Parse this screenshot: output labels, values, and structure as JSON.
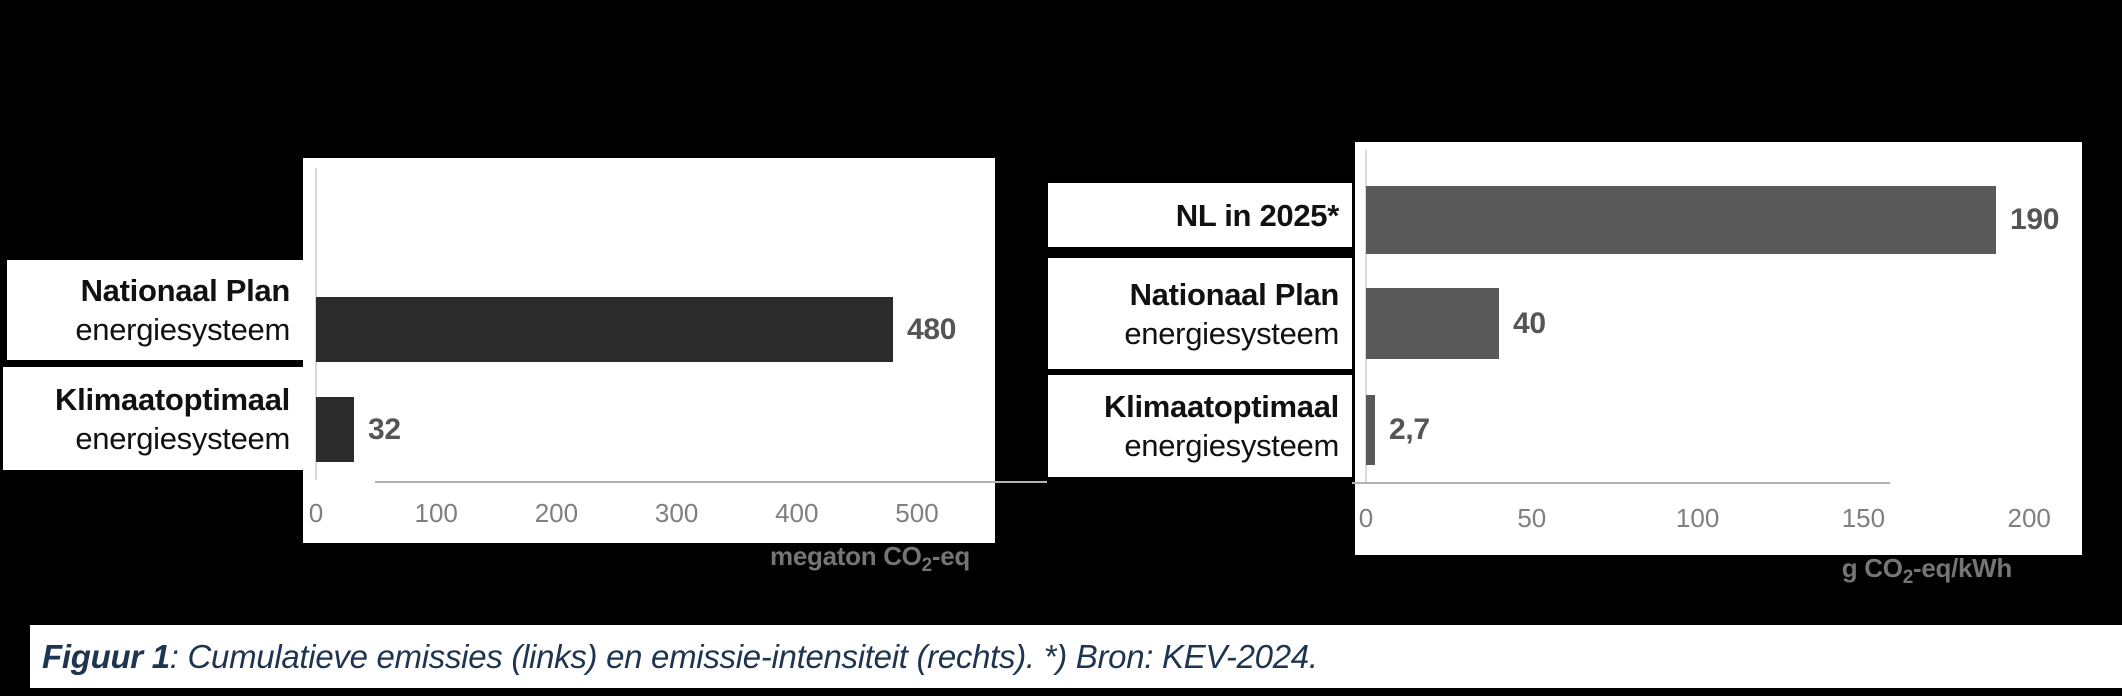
{
  "caption": {
    "label": "Figuur 1",
    "text": ": Cumulatieve emissies (links) en emissie-intensiteit (rechts). *) Bron: KEV-2024."
  },
  "colors": {
    "background": "#000000",
    "panel": "#ffffff",
    "left_bar": "#2b2b2b",
    "right_bar": "#595959",
    "value_label": "#555555",
    "tick_label": "#7f7f7f",
    "axis_title": "#757575",
    "axis_line": "#b3b3b3",
    "caption_text": "#1d3550"
  },
  "chart_data": [
    {
      "type": "bar",
      "orientation": "horizontal",
      "title": "",
      "categories": [
        "Nationaal Plan energiesysteem",
        "Klimaatoptimaal energiesysteem"
      ],
      "category_lines": [
        [
          "Nationaal Plan",
          "energiesysteem"
        ],
        [
          "Klimaatoptimaal",
          "energiesysteem"
        ]
      ],
      "values": [
        480,
        32
      ],
      "value_labels": [
        "480",
        "32"
      ],
      "xticks": [
        0,
        100,
        200,
        300,
        400,
        500
      ],
      "tick_labels": [
        "0",
        "100",
        "200",
        "300",
        "400",
        "500"
      ],
      "xlabel": "megaton CO₂-eq",
      "xlabel_parts": {
        "prefix": "megaton CO",
        "sub": "2",
        "suffix": "-eq"
      },
      "xlim": [
        0,
        560
      ],
      "bar_color": "#2b2b2b",
      "grid": false,
      "legend": false
    },
    {
      "type": "bar",
      "orientation": "horizontal",
      "title": "",
      "categories": [
        "NL in 2025*",
        "Nationaal Plan energiesysteem",
        "Klimaatoptimaal energiesysteem"
      ],
      "category_lines": [
        [
          "NL in 2025*"
        ],
        [
          "Nationaal Plan",
          "energiesysteem"
        ],
        [
          "Klimaatoptimaal",
          "energiesysteem"
        ]
      ],
      "values": [
        190,
        40,
        2.7
      ],
      "value_labels": [
        "190",
        "40",
        "2,7"
      ],
      "xticks": [
        0,
        50,
        100,
        150,
        200
      ],
      "tick_labels": [
        "0",
        "50",
        "100",
        "150",
        "200"
      ],
      "xlabel": "g CO₂-eq/kWh",
      "xlabel_parts": {
        "prefix": "g CO",
        "sub": "2",
        "suffix": "-eq/kWh"
      },
      "xlim": [
        0,
        215
      ],
      "bar_color": "#595959",
      "grid": false,
      "legend": false
    }
  ]
}
